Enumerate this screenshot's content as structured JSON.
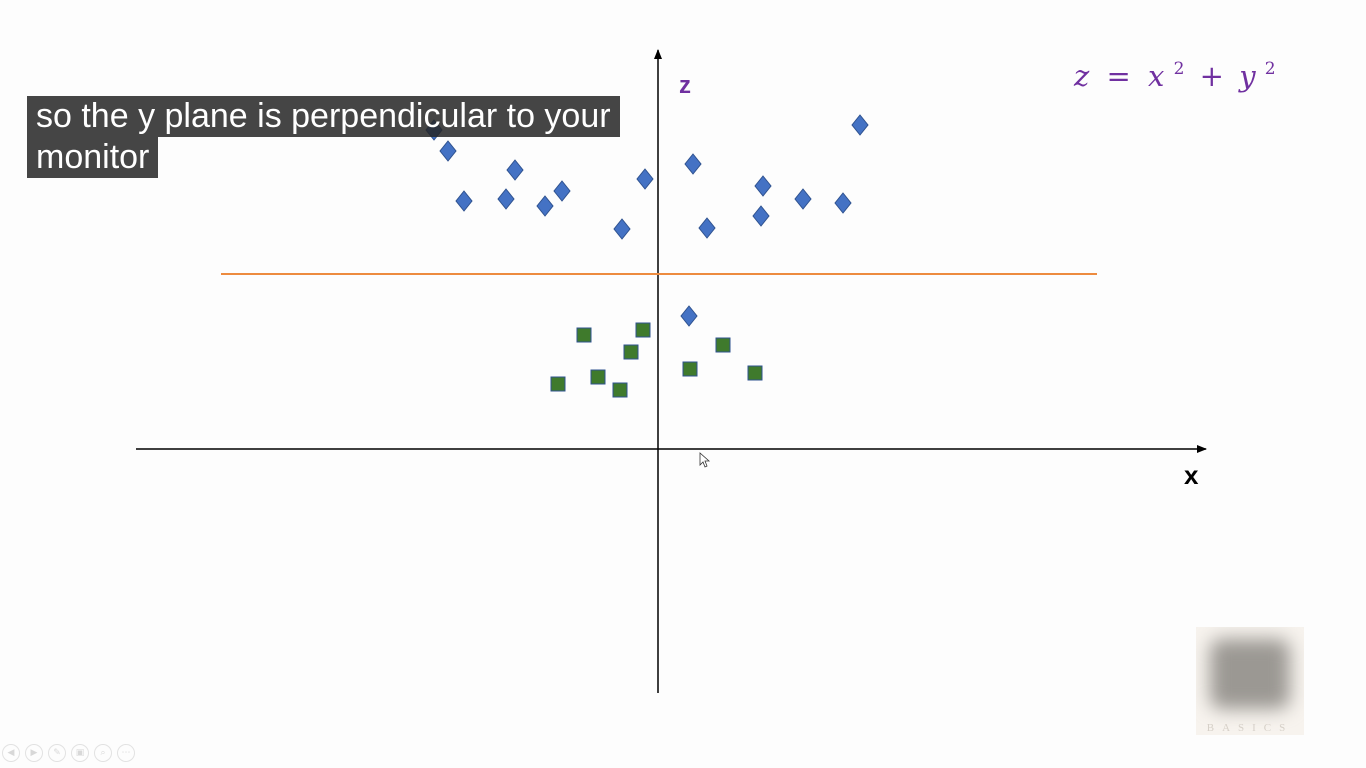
{
  "caption": {
    "line1": "so the y plane is perpendicular to your",
    "line2": "monitor"
  },
  "axes": {
    "x_label": "x",
    "z_label": "z",
    "label_color": "#7030a0"
  },
  "equation": {
    "lhs": "z",
    "eq": "=",
    "x": "x",
    "plus": "+",
    "y": "y",
    "exp": "2",
    "color": "#7030a0"
  },
  "colors": {
    "diamond_fill": "#4472c4",
    "diamond_stroke": "#2f528f",
    "square_fill": "#3f7a2c",
    "square_stroke": "#2f528f",
    "separator": "#ed8b3f",
    "axis": "#000000"
  },
  "icons": [
    "previous-icon",
    "play-icon",
    "pen-icon",
    "slides-icon",
    "zoom-icon",
    "more-icon"
  ],
  "icon_glyphs": [
    "◀",
    "▶",
    "✎",
    "▣",
    "⌕",
    "⋯"
  ]
}
